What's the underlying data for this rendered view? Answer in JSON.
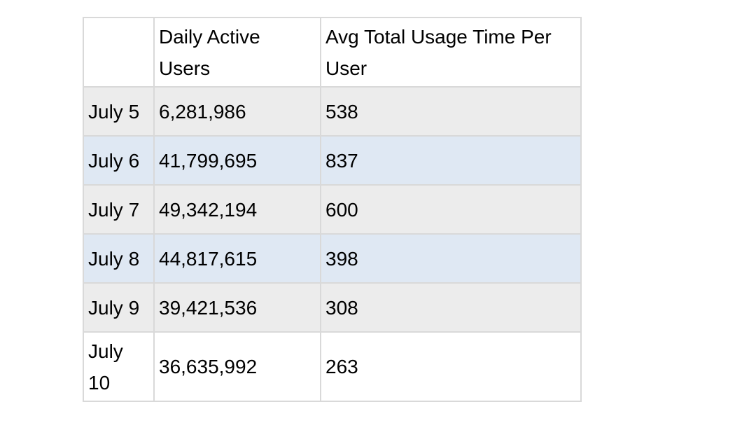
{
  "table": {
    "headers": [
      "",
      "Daily Active Users",
      "Avg Total Usage Time Per User"
    ],
    "rows": [
      {
        "date": "July 5",
        "dau": "6,281,986",
        "usage": "538"
      },
      {
        "date": "July 6",
        "dau": "41,799,695",
        "usage": "837"
      },
      {
        "date": "July 7",
        "dau": "49,342,194",
        "usage": "600"
      },
      {
        "date": "July 8",
        "dau": "44,817,615",
        "usage": "398"
      },
      {
        "date": "July 9",
        "dau": "39,421,536",
        "usage": "308"
      },
      {
        "date": "July 10",
        "dau": "36,635,992",
        "usage": "263"
      }
    ]
  },
  "colors": {
    "row_gray": "#ececec",
    "row_blue": "#dfe8f3",
    "border": "#d9d9d9"
  }
}
